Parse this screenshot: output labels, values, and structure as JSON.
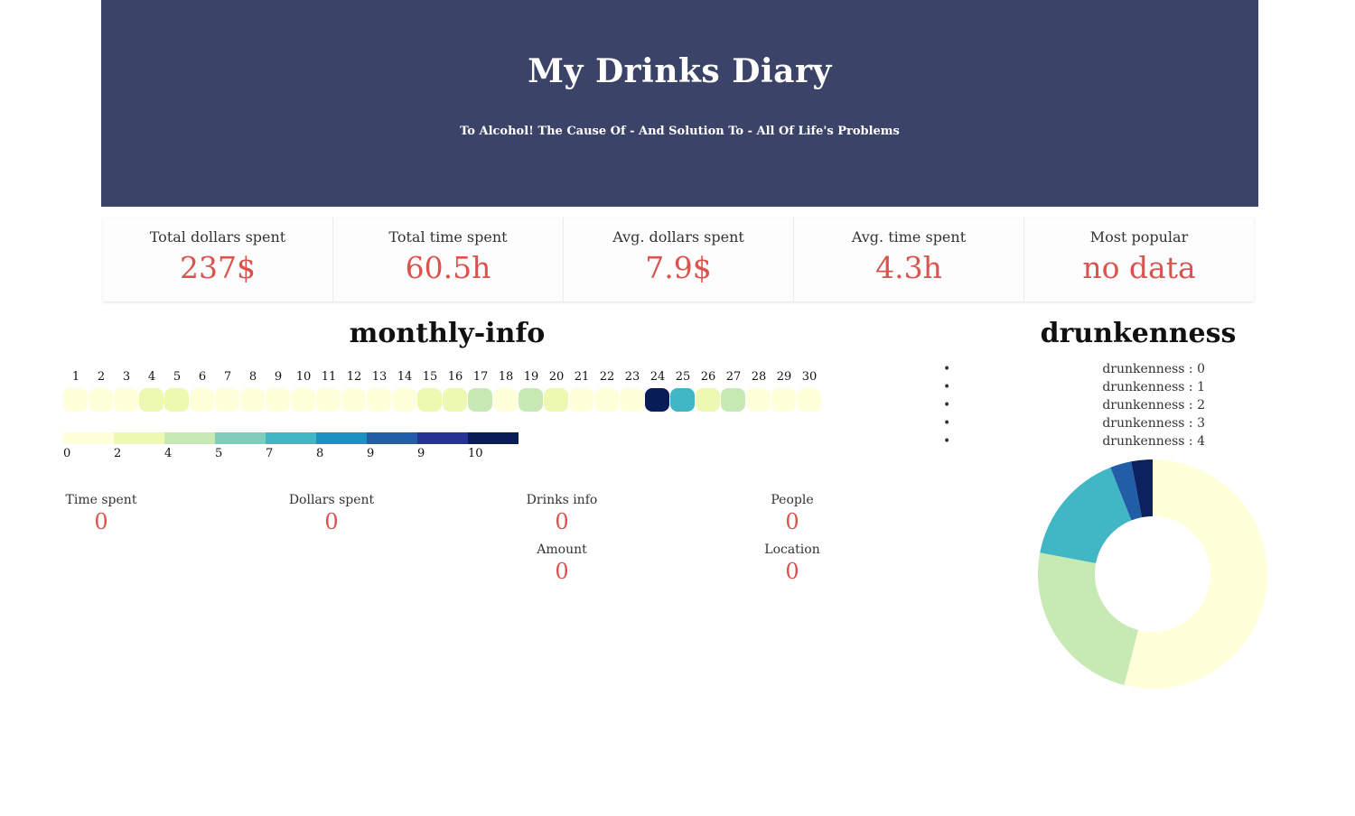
{
  "header": {
    "title": "My Drinks Diary",
    "subtitle": "To Alcohol! The Cause Of - And Solution To - All Of Life's Problems",
    "background": "#3b4369"
  },
  "stats": [
    {
      "label": "Total dollars spent",
      "value": "237$"
    },
    {
      "label": "Total time spent",
      "value": "60.5h"
    },
    {
      "label": "Avg. dollars spent",
      "value": "7.9$"
    },
    {
      "label": "Avg. time spent",
      "value": "4.3h"
    },
    {
      "label": "Most popular",
      "value": "no data"
    }
  ],
  "accent_color": "#d9534f",
  "monthly": {
    "title": "monthly-info",
    "days": [
      "1",
      "2",
      "3",
      "4",
      "5",
      "6",
      "7",
      "8",
      "9",
      "10",
      "11",
      "12",
      "13",
      "14",
      "15",
      "16",
      "17",
      "18",
      "19",
      "20",
      "21",
      "22",
      "23",
      "24",
      "25",
      "26",
      "27",
      "28",
      "29",
      "30"
    ],
    "day_colors": [
      "#ffffd9",
      "#ffffd9",
      "#ffffd9",
      "#edf8b1",
      "#edf8b1",
      "#ffffd9",
      "#ffffd9",
      "#ffffd9",
      "#ffffd9",
      "#ffffd9",
      "#ffffd9",
      "#ffffd9",
      "#ffffd9",
      "#ffffd9",
      "#edf8b1",
      "#edf8b1",
      "#c7e9b4",
      "#ffffd9",
      "#c7e9b4",
      "#edf8b1",
      "#ffffd9",
      "#ffffd9",
      "#ffffd9",
      "#081d58",
      "#41b6c4",
      "#edf8b1",
      "#c7e9b4",
      "#ffffd9",
      "#ffffd9",
      "#ffffd9"
    ],
    "legend": {
      "colors": [
        "#ffffd9",
        "#edf8b1",
        "#c7e9b4",
        "#7fcdbb",
        "#41b6c4",
        "#1d91c0",
        "#225ea8",
        "#253494",
        "#081d58"
      ],
      "labels": [
        "0",
        "2",
        "4",
        "5",
        "7",
        "8",
        "9",
        "9",
        "10"
      ]
    },
    "info": {
      "time_spent": {
        "label": "Time spent",
        "value": "0"
      },
      "dollars_spent": {
        "label": "Dollars spent",
        "value": "0"
      },
      "drinks_info": {
        "label": "Drinks info",
        "value": "0"
      },
      "people": {
        "label": "People",
        "value": "0"
      },
      "amount": {
        "label": "Amount",
        "value": "0"
      },
      "location": {
        "label": "Location",
        "value": "0"
      }
    }
  },
  "drunkenness": {
    "title": "drunkenness",
    "legend": [
      "drunkenness : 0",
      "drunkenness : 1",
      "drunkenness : 2",
      "drunkenness : 3",
      "drunkenness : 4"
    ],
    "chart_data": {
      "type": "pie",
      "categories": [
        "drunkenness : 0",
        "drunkenness : 1",
        "drunkenness : 2",
        "drunkenness : 3",
        "drunkenness : 4"
      ],
      "values": [
        54,
        24,
        16,
        3,
        3
      ],
      "colors": [
        "#ffffd9",
        "#c7e9b4",
        "#41b6c4",
        "#225ea8",
        "#0c2260"
      ]
    }
  }
}
